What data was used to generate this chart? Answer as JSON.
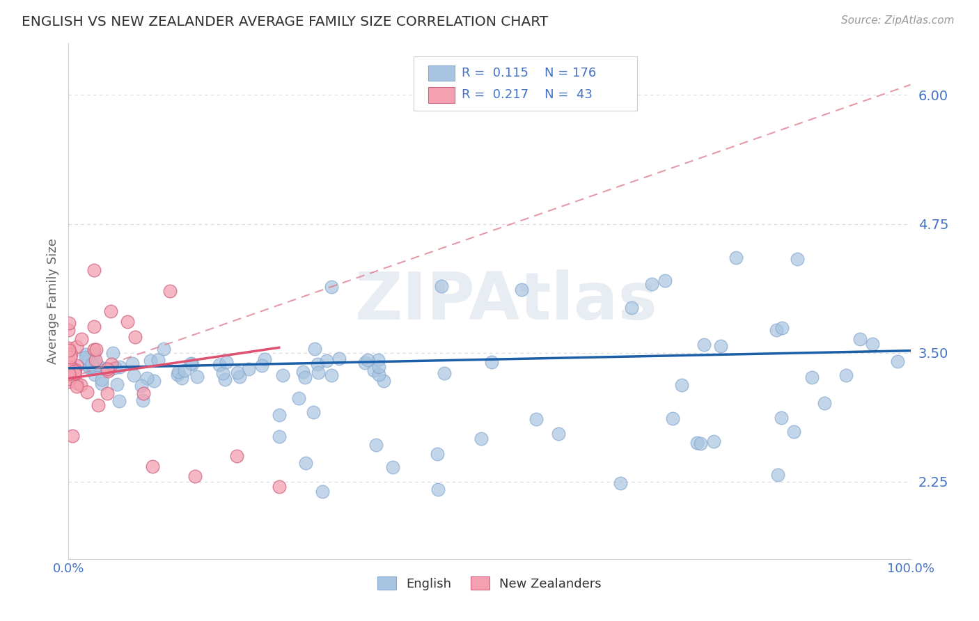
{
  "title": "ENGLISH VS NEW ZEALANDER AVERAGE FAMILY SIZE CORRELATION CHART",
  "source": "Source: ZipAtlas.com",
  "ylabel": "Average Family Size",
  "xlim": [
    0,
    1
  ],
  "ylim": [
    1.5,
    6.5
  ],
  "yticks": [
    2.25,
    3.5,
    4.75,
    6.0
  ],
  "legend_labels": [
    "English",
    "New Zealanders"
  ],
  "english_color": "#a8c4e0",
  "nz_color": "#f4a0b0",
  "english_line_color": "#1a5fa8",
  "nz_line_color": "#e05070",
  "nz_dash_color": "#e08090",
  "title_color": "#333333",
  "axis_label_color": "#4472c4",
  "grid_color": "#c8d0dc",
  "background_color": "#ffffff",
  "watermark_color": "#e8edf4",
  "R_english": 0.115,
  "N_english": 176,
  "R_nz": 0.217,
  "N_nz": 43,
  "legend_box_color": "#cccccc",
  "source_color": "#999999",
  "ylabel_color": "#666666"
}
